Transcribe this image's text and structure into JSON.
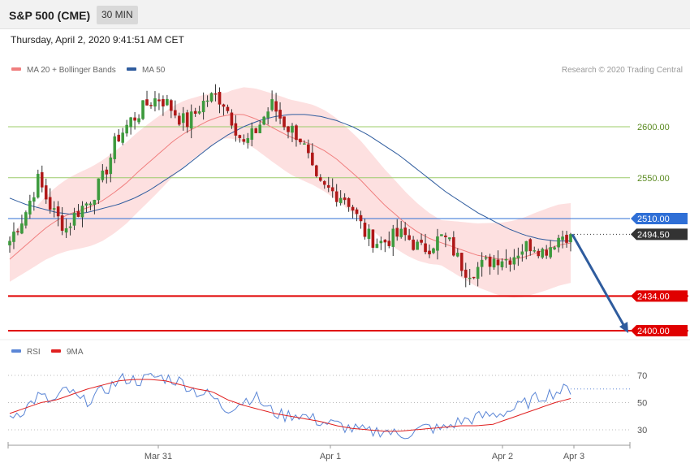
{
  "header": {
    "instrument": "S&P 500 (CME)",
    "timeframe": "30 MIN"
  },
  "timestamp": "Thursday, April 2, 2020 9:41:51 AM CET",
  "legend_main": [
    {
      "label": "MA 20 + Bollinger Bands",
      "color": "#f07e7e"
    },
    {
      "label": "MA 50",
      "color": "#2f5c9e"
    }
  ],
  "legend_rsi": [
    {
      "label": "RSI",
      "color": "#5b86d6"
    },
    {
      "label": "9MA",
      "color": "#e02020"
    }
  ],
  "credit": "Research © 2020 Trading Central",
  "colors": {
    "up": "#3d9a3d",
    "down": "#b01818",
    "support": "#e00000",
    "level": "#2f6fd6",
    "resistance": "#9ccc6a"
  },
  "chart_data": [
    {
      "type": "candlestick",
      "interval": "30 MIN",
      "x_labels": [
        "Mar 31",
        "Apr 1",
        "Apr 2",
        "Apr 3"
      ],
      "ylim": [
        2385,
        2690
      ],
      "y_tick_labels": [
        "2600.00",
        "2550.00",
        "2510.00",
        "2494.50",
        "2434.00",
        "2400.00"
      ],
      "levels": [
        {
          "label": "2600.00",
          "value": 2600,
          "kind": "resistance"
        },
        {
          "label": "2550.00",
          "value": 2550,
          "kind": "resistance"
        },
        {
          "label": "2510.00",
          "value": 2510,
          "kind": "pivot"
        },
        {
          "label": "2494.50",
          "value": 2494.5,
          "kind": "last"
        },
        {
          "label": "2434.00",
          "value": 2434,
          "kind": "support"
        },
        {
          "label": "2400.00",
          "value": 2400,
          "kind": "support"
        }
      ],
      "close_path": [
        2488,
        2502,
        2512,
        2530,
        2548,
        2532,
        2518,
        2508,
        2500,
        2512,
        2520,
        2526,
        2536,
        2548,
        2566,
        2588,
        2596,
        2606,
        2612,
        2620,
        2626,
        2628,
        2624,
        2616,
        2608,
        2604,
        2612,
        2622,
        2628,
        2630,
        2626,
        2612,
        2596,
        2582,
        2590,
        2600,
        2612,
        2622,
        2610,
        2600,
        2596,
        2588,
        2570,
        2546,
        2540,
        2538,
        2534,
        2532,
        2524,
        2510,
        2496,
        2490,
        2486,
        2488,
        2492,
        2494,
        2492,
        2484,
        2480,
        2482,
        2488,
        2492,
        2485,
        2472,
        2460,
        2458,
        2462,
        2466,
        2470,
        2472,
        2470,
        2474,
        2480,
        2484,
        2484,
        2478,
        2482,
        2490,
        2494,
        2494.5
      ],
      "ma20": [
        2470,
        2480,
        2490,
        2500,
        2508,
        2514,
        2518,
        2522,
        2528,
        2536,
        2545,
        2556,
        2566,
        2576,
        2586,
        2594,
        2600,
        2606,
        2610,
        2612,
        2612,
        2608,
        2602,
        2596,
        2590,
        2586,
        2582,
        2576,
        2568,
        2558,
        2548,
        2536,
        2524,
        2514,
        2504,
        2496,
        2490,
        2486,
        2482,
        2478,
        2474,
        2472,
        2470,
        2470,
        2472,
        2476,
        2480,
        2484,
        2486
      ],
      "ma50": [
        2530,
        2524,
        2520,
        2516,
        2514,
        2516,
        2520,
        2524,
        2530,
        2538,
        2548,
        2558,
        2570,
        2582,
        2592,
        2600,
        2606,
        2610,
        2612,
        2612,
        2610,
        2606,
        2600,
        2592,
        2582,
        2572,
        2560,
        2548,
        2536,
        2526,
        2516,
        2508,
        2500,
        2494,
        2490,
        2488,
        2488
      ],
      "forecast": {
        "from": 2494.5,
        "to": 2400
      }
    },
    {
      "type": "line",
      "name_row": "RSI",
      "series": [
        {
          "name": "RSI",
          "values": [
            40,
            45,
            55,
            50,
            60,
            50,
            55,
            62,
            68,
            66,
            69,
            68,
            65,
            58,
            55,
            45,
            50,
            55,
            45,
            40,
            42,
            38,
            35,
            33,
            30,
            28,
            30,
            26,
            28,
            32,
            30,
            35,
            38,
            40,
            42,
            45,
            50,
            55,
            58,
            60
          ]
        },
        {
          "name": "9MA",
          "values": [
            42,
            46,
            50,
            52,
            56,
            60,
            63,
            66,
            67,
            67,
            66,
            63,
            60,
            58,
            52,
            48,
            45,
            42,
            40,
            38,
            36,
            33,
            31,
            30,
            29,
            29,
            30,
            31,
            32,
            33,
            33,
            34,
            38,
            42,
            46,
            50,
            53
          ]
        }
      ],
      "ylim": [
        20,
        80
      ],
      "y_tick_labels": [
        "70",
        "50",
        "30"
      ]
    }
  ]
}
